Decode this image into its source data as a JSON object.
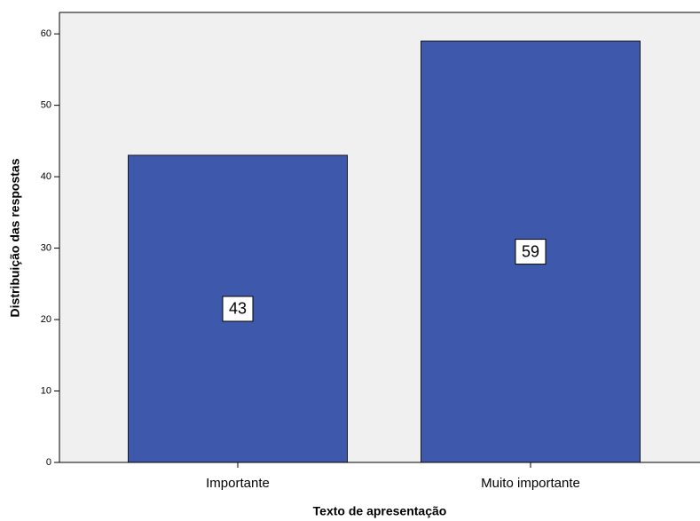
{
  "chart_data": {
    "type": "bar",
    "x_label": "Texto de apresentação",
    "y_label": "Distribuição das respostas",
    "categories": [
      "Importante",
      "Muito importante"
    ],
    "values": [
      43,
      59
    ],
    "color": "#3e58ac",
    "ylim": [
      0,
      63
    ],
    "yticks": [
      0,
      10,
      20,
      30,
      40,
      50,
      60
    ],
    "grid": false
  }
}
